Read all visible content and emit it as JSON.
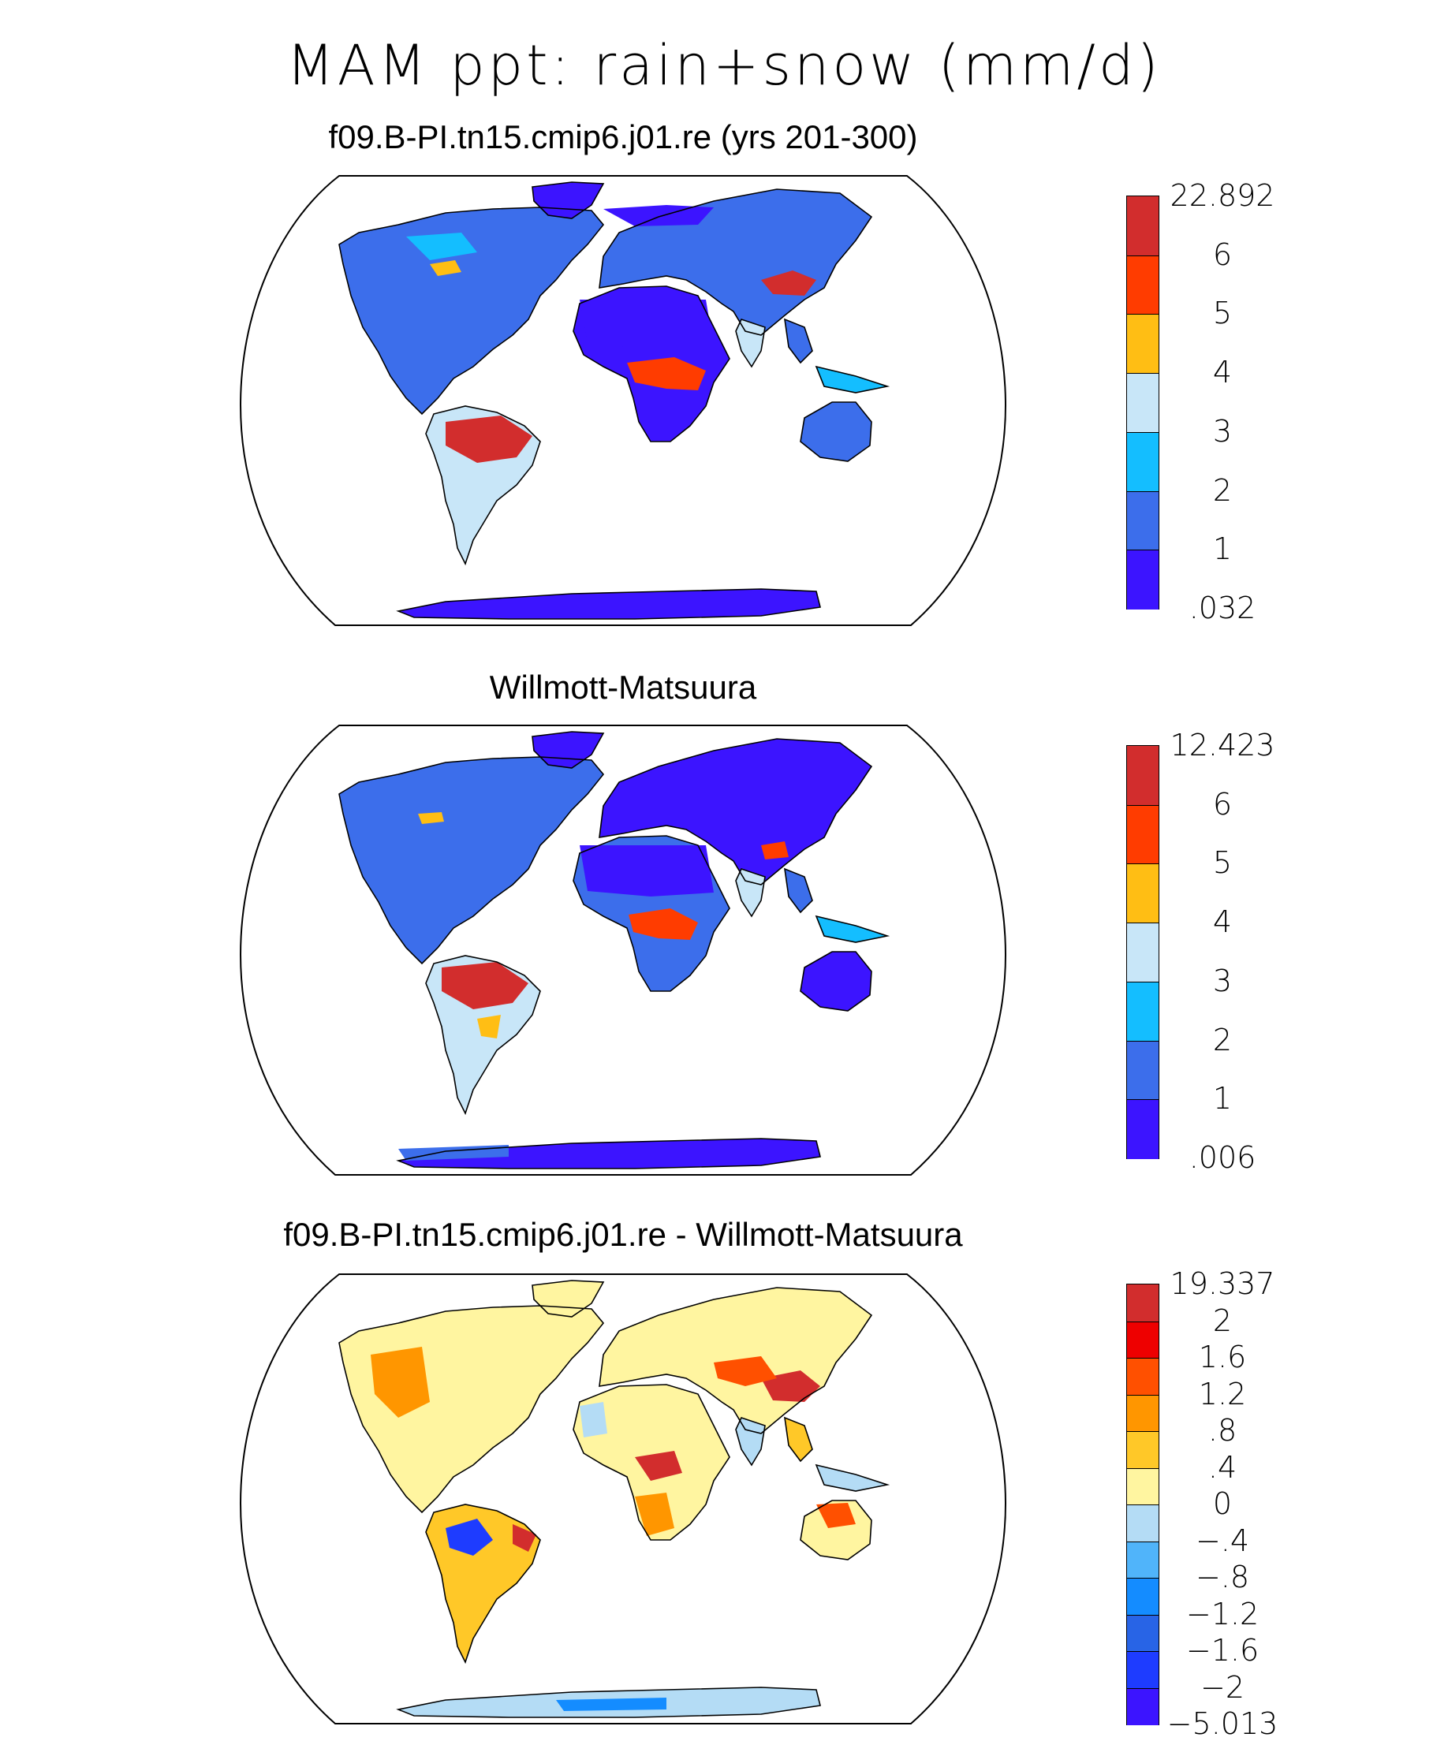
{
  "title": "MAM ppt: rain+snow (mm/d)",
  "panels": [
    {
      "id": "model",
      "subtitle": "f09.B-PI.tn15.cmip6.j01.re (yrs 201-300)",
      "colorbar": {
        "labels": [
          "22.892",
          "6",
          "5",
          "4",
          "3",
          "2",
          "1",
          ".032"
        ],
        "colors": [
          "#d22d2d",
          "#ff3c00",
          "#ffbe14",
          "#c8e6f8",
          "#14beff",
          "#3c6eeb",
          "#3c14ff"
        ]
      }
    },
    {
      "id": "obs",
      "subtitle": "Willmott-Matsuura",
      "colorbar": {
        "labels": [
          "12.423",
          "6",
          "5",
          "4",
          "3",
          "2",
          "1",
          ".006"
        ],
        "colors": [
          "#d22d2d",
          "#ff3c00",
          "#ffbe14",
          "#c8e6f8",
          "#14beff",
          "#3c6eeb",
          "#3c14ff"
        ]
      }
    },
    {
      "id": "diff",
      "subtitle": "f09.B-PI.tn15.cmip6.j01.re - Willmott-Matsuura",
      "colorbar": {
        "labels": [
          "19.337",
          "2",
          "1.6",
          "1.2",
          ".8",
          ".4",
          "0",
          "−.4",
          "−.8",
          "−1.2",
          "−1.6",
          "−2",
          "−5.013"
        ],
        "colors": [
          "#d22d2d",
          "#ee0000",
          "#ff5000",
          "#ff9600",
          "#ffc828",
          "#fff5a0",
          "#b4dcf5",
          "#50b4fa",
          "#148cff",
          "#2864e6",
          "#1e3cff",
          "#3c14ff"
        ]
      }
    }
  ]
}
